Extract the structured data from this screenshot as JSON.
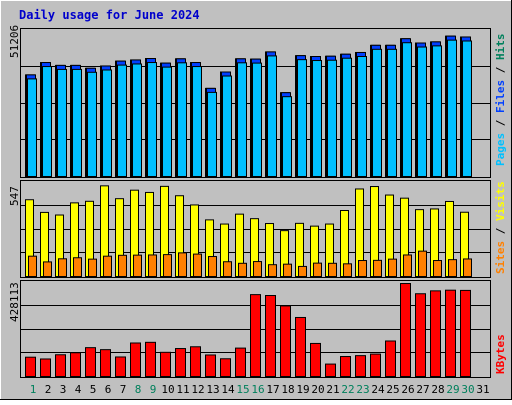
{
  "chart_data": {
    "title": "Daily usage for June 2024",
    "days": [
      "1",
      "2",
      "3",
      "4",
      "5",
      "6",
      "7",
      "8",
      "9",
      "10",
      "11",
      "12",
      "13",
      "14",
      "15",
      "16",
      "17",
      "18",
      "19",
      "20",
      "21",
      "22",
      "23",
      "24",
      "25",
      "26",
      "27",
      "28",
      "29",
      "30",
      "31"
    ],
    "weekend_days": [
      "1",
      "8",
      "9",
      "15",
      "16",
      "22",
      "23",
      "29",
      "30"
    ],
    "colors": {
      "title": "#0000cc",
      "background": "#c0c0c0",
      "hits": "#00805c",
      "files": "#0040ff",
      "pages": "#00c0ff",
      "visits": "#ffff00",
      "sites": "#ff8000",
      "kbytes": "#ff0000",
      "weekday_label": "#000000",
      "weekend_label": "#00805c"
    },
    "charts": [
      {
        "type": "bar",
        "name": "hits-files-pages",
        "ymax": 51206,
        "ymax_label": "51206",
        "series": [
          {
            "name": "Hits",
            "values": [
              35400,
              39700,
              38700,
              38700,
              37700,
              38500,
              40200,
              40600,
              41100,
              39500,
              41000,
              39700,
              30700,
              36400,
              41000,
              40900,
              43400,
              29200,
              42100,
              41800,
              41900,
              42600,
              43200,
              45700,
              45700,
              48000,
              46500,
              46900,
              48900,
              48600,
              0
            ]
          },
          {
            "name": "Files",
            "values": [
              35400,
              39700,
              38700,
              38700,
              37700,
              38500,
              40200,
              40600,
              41100,
              39500,
              41000,
              39700,
              30700,
              36400,
              41000,
              40900,
              43400,
              29200,
              42100,
              41800,
              41900,
              42600,
              43200,
              45700,
              45700,
              48000,
              46500,
              46900,
              48900,
              48600,
              0
            ]
          },
          {
            "name": "Pages",
            "values": [
              0,
              0,
              0,
              0,
              0,
              0,
              0,
              0,
              0,
              0,
              0,
              0,
              0,
              0,
              0,
              0,
              0,
              0,
              0,
              0,
              0,
              0,
              0,
              0,
              0,
              0,
              0,
              0,
              0,
              0,
              0
            ]
          }
        ],
        "legend": [
          {
            "text": "Hits",
            "color": "#00805c"
          },
          {
            "text": "Files",
            "color": "#0040ff"
          },
          {
            "text": "Pages",
            "color": "#00c0ff"
          }
        ]
      },
      {
        "type": "bar",
        "name": "visits-sites",
        "ymax": 547,
        "ymax_label": "547",
        "series": [
          {
            "name": "Visits",
            "values": [
              442,
              369,
              354,
              424,
              433,
              522,
              448,
              497,
              484,
              519,
              465,
              412,
              326,
              302,
              359,
              333,
              305,
              264,
              306,
              290,
              302,
              380,
              504,
              518,
              469,
              451,
              385,
              389,
              432,
              370,
              0
            ]
          },
          {
            "name": "Sites",
            "values": [
              117,
              84,
              102,
              108,
              100,
              117,
              122,
              123,
              124,
              126,
              136,
              129,
              115,
              85,
              76,
              86,
              68,
              71,
              58,
              77,
              76,
              73,
              92,
              93,
              100,
              124,
              146,
              92,
              97,
              101,
              0
            ]
          }
        ],
        "legend": [
          {
            "text": "Sites",
            "color": "#ff8000"
          },
          {
            "text": "Visits",
            "color": "#ffff00"
          }
        ]
      },
      {
        "type": "bar",
        "name": "kbytes",
        "ymax": 428113,
        "ymax_label": "428113",
        "series": [
          {
            "name": "KBytes",
            "values": [
              87000,
              79000,
              98000,
              107000,
              130000,
              121000,
              88000,
              151000,
              154000,
              109000,
              126000,
              134000,
              97000,
              80000,
              128000,
              369000,
              365000,
              318000,
              266000,
              149000,
              56000,
              90000,
              94000,
              101000,
              160000,
              419000,
              373000,
              386000,
              389000,
              388000,
              0
            ]
          }
        ],
        "legend": [
          {
            "text": "KBytes",
            "color": "#ff0000"
          }
        ]
      }
    ]
  }
}
